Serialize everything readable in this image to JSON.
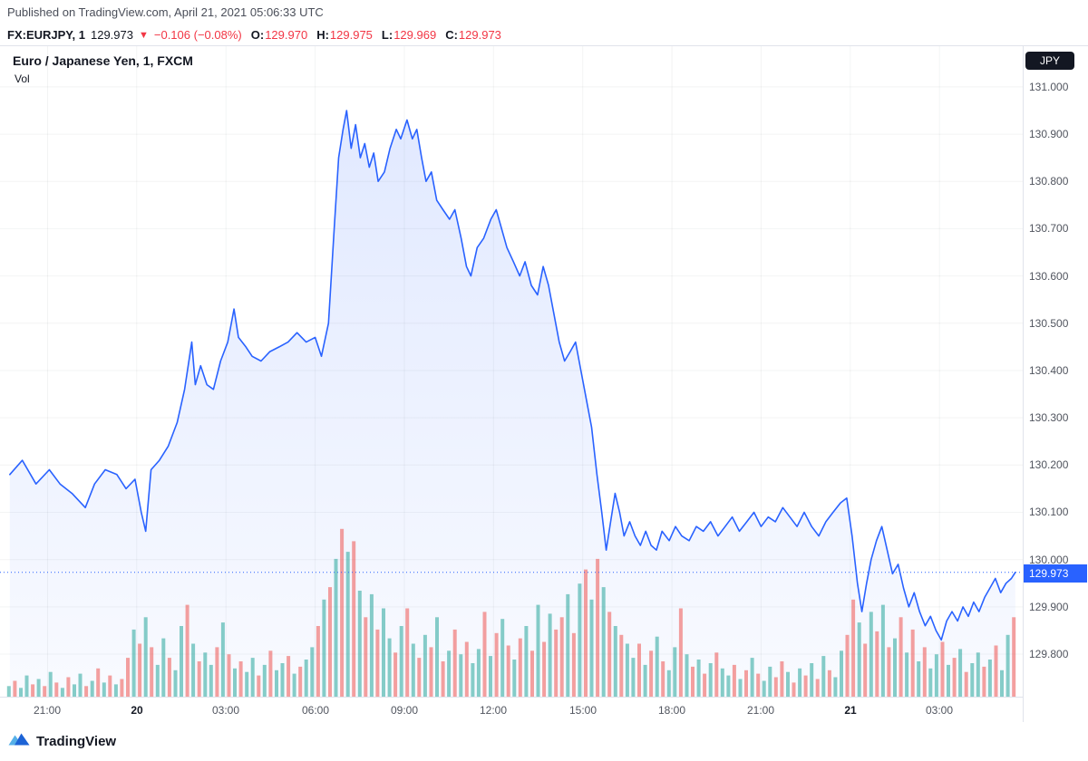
{
  "published": {
    "text": "Published on TradingView.com, April 21, 2021 05:06:33 UTC"
  },
  "symbol_bar": {
    "symbol_interval": "FX:EURJPY, 1",
    "last": "129.973",
    "arrow": "▼",
    "change": "−0.106 (−0.08%)",
    "ohlc": [
      {
        "label": "O:",
        "value": "129.970"
      },
      {
        "label": "H:",
        "value": "129.975"
      },
      {
        "label": "L:",
        "value": "129.969"
      },
      {
        "label": "C:",
        "value": "129.973"
      }
    ]
  },
  "chart": {
    "title": "Euro / Japanese Yen, 1, FXCM",
    "indicator_label": "Vol",
    "axis_currency": "JPY",
    "price_badge": "129.973",
    "accent_color": "#2962ff",
    "up_color": "#26a69a",
    "down_color": "#ef5350",
    "red_text": "#f23645"
  },
  "footer": {
    "brand": "TradingView"
  },
  "chart_data": {
    "type": "area",
    "title": "Euro / Japanese Yen, 1, FXCM",
    "x_unit": "hours since 2021-04-20 00:00 UTC",
    "x_range": [
      -4.6,
      29.8
    ],
    "y_range": [
      129.71,
      131.086
    ],
    "y_ticks": [
      131.0,
      130.9,
      130.8,
      130.7,
      130.6,
      130.5,
      130.4,
      130.3,
      130.2,
      130.1,
      130.0,
      129.9,
      129.8
    ],
    "x_ticks": [
      {
        "t": -3,
        "label": "21:00",
        "bold": false
      },
      {
        "t": 0,
        "label": "20",
        "bold": true
      },
      {
        "t": 3,
        "label": "03:00",
        "bold": false
      },
      {
        "t": 6,
        "label": "06:00",
        "bold": false
      },
      {
        "t": 9,
        "label": "09:00",
        "bold": false
      },
      {
        "t": 12,
        "label": "12:00",
        "bold": false
      },
      {
        "t": 15,
        "label": "15:00",
        "bold": false
      },
      {
        "t": 18,
        "label": "18:00",
        "bold": false
      },
      {
        "t": 21,
        "label": "21:00",
        "bold": false
      },
      {
        "t": 24,
        "label": "21",
        "bold": true
      },
      {
        "t": 27,
        "label": "03:00",
        "bold": false
      }
    ],
    "current_price": 129.973,
    "price_line": {
      "color": "#2962ff",
      "points": [
        [
          -4.27,
          130.18
        ],
        [
          -3.85,
          130.21
        ],
        [
          -3.39,
          130.16
        ],
        [
          -2.94,
          130.19
        ],
        [
          -2.58,
          130.16
        ],
        [
          -2.18,
          130.14
        ],
        [
          -1.73,
          130.11
        ],
        [
          -1.42,
          130.16
        ],
        [
          -1.06,
          130.19
        ],
        [
          -0.67,
          130.18
        ],
        [
          -0.36,
          130.15
        ],
        [
          -0.06,
          130.17
        ],
        [
          0.15,
          130.1
        ],
        [
          0.3,
          130.06
        ],
        [
          0.48,
          130.19
        ],
        [
          0.76,
          130.21
        ],
        [
          1.06,
          130.24
        ],
        [
          1.36,
          130.29
        ],
        [
          1.61,
          130.36
        ],
        [
          1.85,
          130.46
        ],
        [
          1.97,
          130.37
        ],
        [
          2.15,
          130.41
        ],
        [
          2.36,
          130.37
        ],
        [
          2.58,
          130.36
        ],
        [
          2.82,
          130.42
        ],
        [
          3.06,
          130.46
        ],
        [
          3.27,
          130.53
        ],
        [
          3.42,
          130.47
        ],
        [
          3.67,
          130.45
        ],
        [
          3.88,
          130.43
        ],
        [
          4.18,
          130.42
        ],
        [
          4.48,
          130.44
        ],
        [
          4.79,
          130.45
        ],
        [
          5.09,
          130.46
        ],
        [
          5.39,
          130.48
        ],
        [
          5.7,
          130.46
        ],
        [
          6.0,
          130.47
        ],
        [
          6.21,
          130.43
        ],
        [
          6.45,
          130.5
        ],
        [
          6.64,
          130.7
        ],
        [
          6.79,
          130.85
        ],
        [
          6.94,
          130.91
        ],
        [
          7.06,
          130.95
        ],
        [
          7.21,
          130.87
        ],
        [
          7.36,
          130.92
        ],
        [
          7.52,
          130.85
        ],
        [
          7.67,
          130.88
        ],
        [
          7.82,
          130.83
        ],
        [
          7.97,
          130.86
        ],
        [
          8.12,
          130.8
        ],
        [
          8.33,
          130.82
        ],
        [
          8.52,
          130.87
        ],
        [
          8.73,
          130.91
        ],
        [
          8.88,
          130.89
        ],
        [
          9.09,
          130.93
        ],
        [
          9.27,
          130.89
        ],
        [
          9.42,
          130.91
        ],
        [
          9.58,
          130.85
        ],
        [
          9.73,
          130.8
        ],
        [
          9.91,
          130.82
        ],
        [
          10.09,
          130.76
        ],
        [
          10.3,
          130.74
        ],
        [
          10.52,
          130.72
        ],
        [
          10.7,
          130.74
        ],
        [
          10.91,
          130.68
        ],
        [
          11.09,
          130.62
        ],
        [
          11.24,
          130.6
        ],
        [
          11.45,
          130.66
        ],
        [
          11.67,
          130.68
        ],
        [
          11.91,
          130.72
        ],
        [
          12.09,
          130.74
        ],
        [
          12.27,
          130.7
        ],
        [
          12.45,
          130.66
        ],
        [
          12.67,
          130.63
        ],
        [
          12.88,
          130.6
        ],
        [
          13.06,
          130.63
        ],
        [
          13.27,
          130.58
        ],
        [
          13.48,
          130.56
        ],
        [
          13.67,
          130.62
        ],
        [
          13.85,
          130.58
        ],
        [
          14.03,
          130.52
        ],
        [
          14.21,
          130.46
        ],
        [
          14.39,
          130.42
        ],
        [
          14.58,
          130.44
        ],
        [
          14.76,
          130.46
        ],
        [
          14.94,
          130.4
        ],
        [
          15.12,
          130.34
        ],
        [
          15.3,
          130.28
        ],
        [
          15.48,
          130.18
        ],
        [
          15.64,
          130.1
        ],
        [
          15.79,
          130.02
        ],
        [
          15.94,
          130.08
        ],
        [
          16.09,
          130.14
        ],
        [
          16.24,
          130.1
        ],
        [
          16.39,
          130.05
        ],
        [
          16.58,
          130.08
        ],
        [
          16.76,
          130.05
        ],
        [
          16.94,
          130.03
        ],
        [
          17.12,
          130.06
        ],
        [
          17.3,
          130.03
        ],
        [
          17.48,
          130.02
        ],
        [
          17.67,
          130.06
        ],
        [
          17.91,
          130.04
        ],
        [
          18.12,
          130.07
        ],
        [
          18.33,
          130.05
        ],
        [
          18.58,
          130.04
        ],
        [
          18.82,
          130.07
        ],
        [
          19.06,
          130.06
        ],
        [
          19.3,
          130.08
        ],
        [
          19.55,
          130.05
        ],
        [
          19.79,
          130.07
        ],
        [
          20.03,
          130.09
        ],
        [
          20.27,
          130.06
        ],
        [
          20.52,
          130.08
        ],
        [
          20.76,
          130.1
        ],
        [
          21.0,
          130.07
        ],
        [
          21.24,
          130.09
        ],
        [
          21.48,
          130.08
        ],
        [
          21.73,
          130.11
        ],
        [
          21.97,
          130.09
        ],
        [
          22.21,
          130.07
        ],
        [
          22.45,
          130.1
        ],
        [
          22.7,
          130.07
        ],
        [
          22.94,
          130.05
        ],
        [
          23.18,
          130.08
        ],
        [
          23.42,
          130.1
        ],
        [
          23.67,
          130.12
        ],
        [
          23.88,
          130.13
        ],
        [
          24.06,
          130.05
        ],
        [
          24.24,
          129.95
        ],
        [
          24.39,
          129.89
        ],
        [
          24.55,
          129.95
        ],
        [
          24.7,
          130.0
        ],
        [
          24.88,
          130.04
        ],
        [
          25.06,
          130.07
        ],
        [
          25.24,
          130.02
        ],
        [
          25.42,
          129.97
        ],
        [
          25.61,
          129.99
        ],
        [
          25.79,
          129.94
        ],
        [
          25.97,
          129.9
        ],
        [
          26.15,
          129.93
        ],
        [
          26.33,
          129.89
        ],
        [
          26.52,
          129.86
        ],
        [
          26.7,
          129.88
        ],
        [
          26.88,
          129.85
        ],
        [
          27.06,
          129.83
        ],
        [
          27.24,
          129.87
        ],
        [
          27.42,
          129.89
        ],
        [
          27.61,
          129.87
        ],
        [
          27.79,
          129.9
        ],
        [
          27.97,
          129.88
        ],
        [
          28.15,
          129.91
        ],
        [
          28.33,
          129.89
        ],
        [
          28.52,
          129.92
        ],
        [
          28.7,
          129.94
        ],
        [
          28.88,
          129.96
        ],
        [
          29.06,
          129.93
        ],
        [
          29.24,
          129.95
        ],
        [
          29.42,
          129.96
        ],
        [
          29.55,
          129.973
        ]
      ]
    },
    "volume": {
      "t0": -4.3,
      "dt": 0.2,
      "up_color": "#26a69a",
      "down_color": "#ef5350",
      "bars": [
        [
          0.06,
          1
        ],
        [
          0.09,
          0
        ],
        [
          0.05,
          1
        ],
        [
          0.12,
          1
        ],
        [
          0.07,
          0
        ],
        [
          0.1,
          1
        ],
        [
          0.06,
          0
        ],
        [
          0.14,
          1
        ],
        [
          0.08,
          0
        ],
        [
          0.05,
          1
        ],
        [
          0.11,
          0
        ],
        [
          0.07,
          1
        ],
        [
          0.13,
          1
        ],
        [
          0.06,
          0
        ],
        [
          0.09,
          1
        ],
        [
          0.16,
          0
        ],
        [
          0.08,
          1
        ],
        [
          0.12,
          0
        ],
        [
          0.07,
          1
        ],
        [
          0.1,
          0
        ],
        [
          0.22,
          0
        ],
        [
          0.38,
          1
        ],
        [
          0.3,
          0
        ],
        [
          0.45,
          1
        ],
        [
          0.28,
          0
        ],
        [
          0.18,
          1
        ],
        [
          0.33,
          1
        ],
        [
          0.22,
          0
        ],
        [
          0.15,
          1
        ],
        [
          0.4,
          1
        ],
        [
          0.52,
          0
        ],
        [
          0.3,
          1
        ],
        [
          0.2,
          0
        ],
        [
          0.25,
          1
        ],
        [
          0.18,
          1
        ],
        [
          0.28,
          0
        ],
        [
          0.42,
          1
        ],
        [
          0.24,
          0
        ],
        [
          0.16,
          1
        ],
        [
          0.2,
          0
        ],
        [
          0.14,
          1
        ],
        [
          0.22,
          1
        ],
        [
          0.12,
          0
        ],
        [
          0.18,
          1
        ],
        [
          0.26,
          0
        ],
        [
          0.15,
          1
        ],
        [
          0.19,
          1
        ],
        [
          0.23,
          0
        ],
        [
          0.13,
          1
        ],
        [
          0.17,
          0
        ],
        [
          0.21,
          1
        ],
        [
          0.28,
          1
        ],
        [
          0.4,
          0
        ],
        [
          0.55,
          1
        ],
        [
          0.62,
          0
        ],
        [
          0.78,
          1
        ],
        [
          0.95,
          0
        ],
        [
          0.82,
          1
        ],
        [
          0.88,
          0
        ],
        [
          0.6,
          1
        ],
        [
          0.45,
          0
        ],
        [
          0.58,
          1
        ],
        [
          0.38,
          0
        ],
        [
          0.5,
          1
        ],
        [
          0.33,
          1
        ],
        [
          0.25,
          0
        ],
        [
          0.4,
          1
        ],
        [
          0.5,
          0
        ],
        [
          0.3,
          1
        ],
        [
          0.22,
          0
        ],
        [
          0.35,
          1
        ],
        [
          0.28,
          0
        ],
        [
          0.45,
          1
        ],
        [
          0.2,
          0
        ],
        [
          0.26,
          1
        ],
        [
          0.38,
          0
        ],
        [
          0.24,
          1
        ],
        [
          0.31,
          0
        ],
        [
          0.19,
          1
        ],
        [
          0.27,
          1
        ],
        [
          0.48,
          0
        ],
        [
          0.23,
          1
        ],
        [
          0.36,
          0
        ],
        [
          0.44,
          1
        ],
        [
          0.29,
          0
        ],
        [
          0.21,
          1
        ],
        [
          0.33,
          0
        ],
        [
          0.4,
          1
        ],
        [
          0.26,
          0
        ],
        [
          0.52,
          1
        ],
        [
          0.31,
          0
        ],
        [
          0.47,
          1
        ],
        [
          0.38,
          0
        ],
        [
          0.45,
          0
        ],
        [
          0.58,
          1
        ],
        [
          0.36,
          0
        ],
        [
          0.64,
          1
        ],
        [
          0.72,
          0
        ],
        [
          0.55,
          1
        ],
        [
          0.78,
          0
        ],
        [
          0.62,
          1
        ],
        [
          0.48,
          0
        ],
        [
          0.4,
          1
        ],
        [
          0.35,
          0
        ],
        [
          0.3,
          1
        ],
        [
          0.22,
          1
        ],
        [
          0.3,
          0
        ],
        [
          0.18,
          1
        ],
        [
          0.26,
          0
        ],
        [
          0.34,
          1
        ],
        [
          0.2,
          0
        ],
        [
          0.15,
          1
        ],
        [
          0.28,
          1
        ],
        [
          0.5,
          0
        ],
        [
          0.24,
          1
        ],
        [
          0.17,
          0
        ],
        [
          0.21,
          1
        ],
        [
          0.13,
          0
        ],
        [
          0.19,
          1
        ],
        [
          0.25,
          0
        ],
        [
          0.16,
          1
        ],
        [
          0.12,
          1
        ],
        [
          0.18,
          0
        ],
        [
          0.1,
          1
        ],
        [
          0.15,
          0
        ],
        [
          0.22,
          1
        ],
        [
          0.13,
          0
        ],
        [
          0.09,
          1
        ],
        [
          0.17,
          1
        ],
        [
          0.11,
          0
        ],
        [
          0.2,
          0
        ],
        [
          0.14,
          1
        ],
        [
          0.08,
          0
        ],
        [
          0.16,
          1
        ],
        [
          0.12,
          0
        ],
        [
          0.19,
          1
        ],
        [
          0.1,
          0
        ],
        [
          0.23,
          1
        ],
        [
          0.15,
          0
        ],
        [
          0.11,
          1
        ],
        [
          0.26,
          1
        ],
        [
          0.35,
          0
        ],
        [
          0.55,
          0
        ],
        [
          0.42,
          1
        ],
        [
          0.3,
          0
        ],
        [
          0.48,
          1
        ],
        [
          0.37,
          0
        ],
        [
          0.52,
          1
        ],
        [
          0.28,
          0
        ],
        [
          0.33,
          1
        ],
        [
          0.45,
          0
        ],
        [
          0.25,
          1
        ],
        [
          0.38,
          0
        ],
        [
          0.2,
          1
        ],
        [
          0.28,
          0
        ],
        [
          0.16,
          1
        ],
        [
          0.24,
          1
        ],
        [
          0.31,
          0
        ],
        [
          0.18,
          1
        ],
        [
          0.22,
          0
        ],
        [
          0.27,
          1
        ],
        [
          0.14,
          0
        ],
        [
          0.19,
          1
        ],
        [
          0.25,
          1
        ],
        [
          0.17,
          0
        ],
        [
          0.21,
          1
        ],
        [
          0.29,
          0
        ],
        [
          0.15,
          1
        ],
        [
          0.35,
          1
        ],
        [
          0.45,
          0
        ]
      ]
    }
  }
}
